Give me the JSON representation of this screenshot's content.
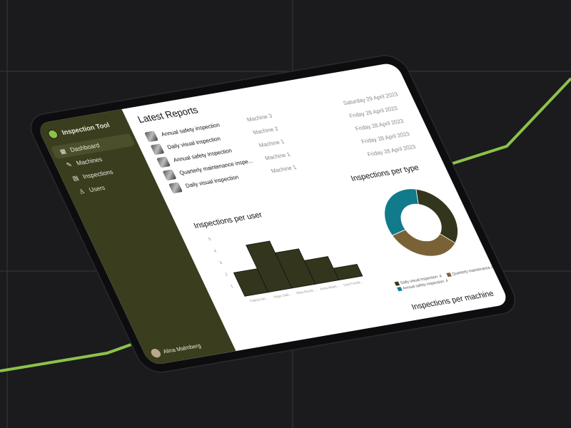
{
  "app": {
    "title": "Inspection Tool"
  },
  "sidebar": {
    "items": [
      {
        "label": "Dashboard",
        "icon": "grid-icon",
        "active": true
      },
      {
        "label": "Machines",
        "icon": "wrench-icon"
      },
      {
        "label": "Inspections",
        "icon": "clipboard-icon"
      },
      {
        "label": "Users",
        "icon": "user-icon"
      }
    ],
    "user": "Alina Malmberg"
  },
  "reports": {
    "title": "Latest Reports",
    "rows": [
      {
        "name": "Annual safety inspection",
        "machine": "Machine 3",
        "date": "Saturday 29 April 2023"
      },
      {
        "name": "Daily visual inspection",
        "machine": "Machine 2",
        "date": "Friday 28 April 2023"
      },
      {
        "name": "Annual safety inspection",
        "machine": "Machine 1",
        "date": "Friday 28 April 2023"
      },
      {
        "name": "Quarterly maintenance inspe...",
        "machine": "Machine 1",
        "date": "Friday 28 April 2023"
      },
      {
        "name": "Daily visual inspection",
        "machine": "Machine 1",
        "date": "Friday 28 April 2023"
      }
    ]
  },
  "chart_data": [
    {
      "type": "bar",
      "title": "Inspections per user",
      "categories": [
        "Fatima Dri...",
        "Hugo Sale...",
        "Elise Bouss...",
        "Anna Maeh...",
        "Guid Fande..."
      ],
      "values": [
        2,
        4,
        3,
        2,
        1
      ],
      "yticks": [
        1,
        2,
        3,
        4,
        5
      ],
      "ylim": [
        0,
        5
      ],
      "color": "#33361c"
    },
    {
      "type": "pie",
      "title": "Inspections per type",
      "donut": true,
      "labels": [
        "Daily visual inspection",
        "Quarterly maintenance inspection",
        "Annual safety inspection"
      ],
      "values": [
        4,
        4,
        4
      ],
      "legend_labels": [
        "Daily visual inspection: 4",
        "Quarterly maintenance inspection: 4",
        "Annual safety inspection: 4"
      ],
      "colors": [
        "#33361c",
        "#7a6236",
        "#117a8b"
      ],
      "legend": "bottom"
    }
  ],
  "next_section": {
    "title": "Inspections per machine"
  }
}
